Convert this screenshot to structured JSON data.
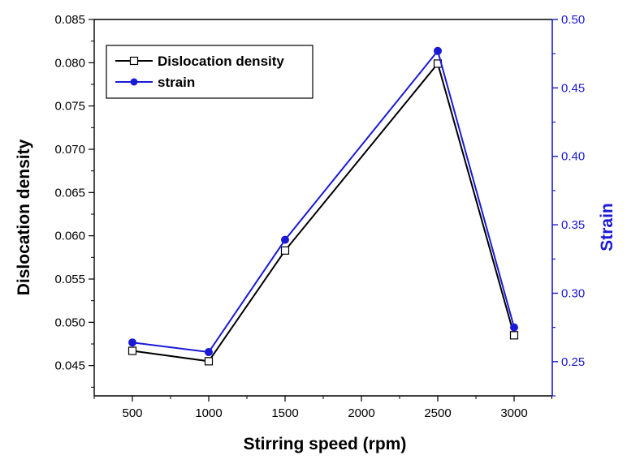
{
  "chart_data": {
    "type": "line",
    "xlabel": "Stirring speed (rpm)",
    "ylabel_left": "Dislocation density",
    "ylabel_right": "Strain",
    "x": [
      500,
      1000,
      1500,
      2500,
      3000
    ],
    "xticks": [
      500,
      1000,
      1500,
      2000,
      2500,
      3000
    ],
    "xlim": [
      250,
      3250
    ],
    "ylim_left": [
      0.0415,
      0.085
    ],
    "ylim_right": [
      0.225,
      0.5
    ],
    "yticks_left": [
      "0.045",
      "0.050",
      "0.055",
      "0.060",
      "0.065",
      "0.070",
      "0.075",
      "0.080",
      "0.085"
    ],
    "yticks_right": [
      "0.25",
      "0.30",
      "0.35",
      "0.40",
      "0.45",
      "0.50"
    ],
    "series": [
      {
        "name": "Dislocation density",
        "axis": "left",
        "color": "#000000",
        "marker": "open-square",
        "values": [
          0.0467,
          0.0455,
          0.0583,
          0.0799,
          0.0485
        ]
      },
      {
        "name": "strain",
        "axis": "right",
        "color": "#1a1ad6",
        "marker": "filled-circle",
        "values": [
          0.264,
          0.257,
          0.339,
          0.477,
          0.275
        ]
      }
    ],
    "legend": [
      "Dislocation density",
      "strain"
    ],
    "legend_position": "top-left",
    "grid": false
  }
}
